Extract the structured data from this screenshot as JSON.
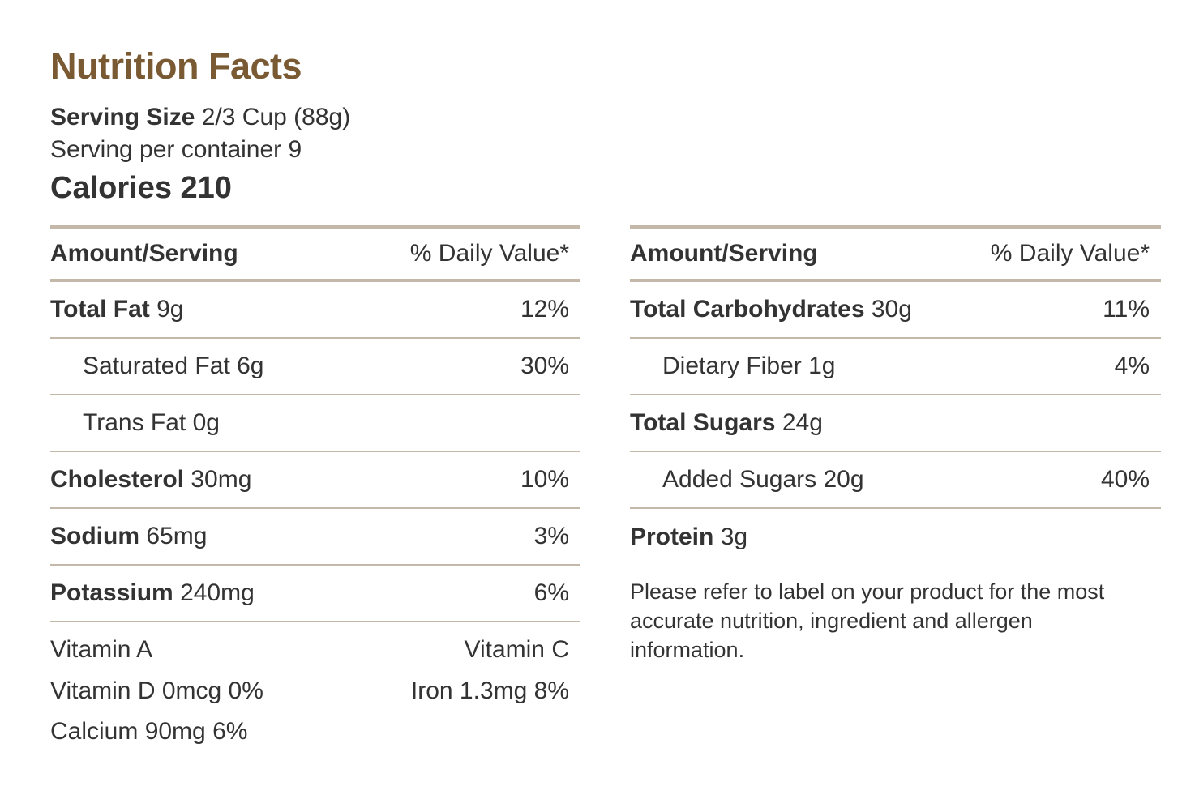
{
  "title": "Nutrition Facts",
  "serving": {
    "size_label": "Serving Size",
    "size_value": "2/3 Cup (88g)",
    "per_container": "Serving per container 9",
    "calories_label": "Calories",
    "calories_value": "210"
  },
  "table_head": {
    "amount": "Amount/Serving",
    "daily_value": "% Daily Value*"
  },
  "left_rows": [
    {
      "name": "Total Fat",
      "amount": "9g",
      "dv": "12%"
    },
    {
      "name": "Saturated Fat",
      "amount": "6g",
      "dv": "30%"
    },
    {
      "name": "Trans Fat",
      "amount": "0g",
      "dv": ""
    },
    {
      "name": "Cholesterol",
      "amount": "30mg",
      "dv": "10%"
    },
    {
      "name": "Sodium",
      "amount": "65mg",
      "dv": "3%"
    },
    {
      "name": "Potassium",
      "amount": "240mg",
      "dv": "6%"
    }
  ],
  "right_rows": [
    {
      "name": "Total Carbohydrates",
      "amount": "30g",
      "dv": "11%"
    },
    {
      "name": "Dietary Fiber",
      "amount": "1g",
      "dv": "4%"
    },
    {
      "name": "Total Sugars",
      "amount": "24g",
      "dv": ""
    },
    {
      "name": "Added Sugars",
      "amount": "20g",
      "dv": "40%"
    },
    {
      "name": "Protein",
      "amount": "3g",
      "dv": ""
    }
  ],
  "vitamins": {
    "vitamin_a": "Vitamin A",
    "vitamin_c": "Vitamin C",
    "vitamin_d": "Vitamin D 0mcg 0%",
    "iron": "Iron 1.3mg 8%",
    "calcium": "Calcium 90mg 6%"
  },
  "note": "Please refer to label on your product for the most accurate nutrition, ingredient and allergen information.",
  "colors": {
    "title": "#7a5a33",
    "text": "#333333",
    "rule": "#c4b8a8"
  }
}
